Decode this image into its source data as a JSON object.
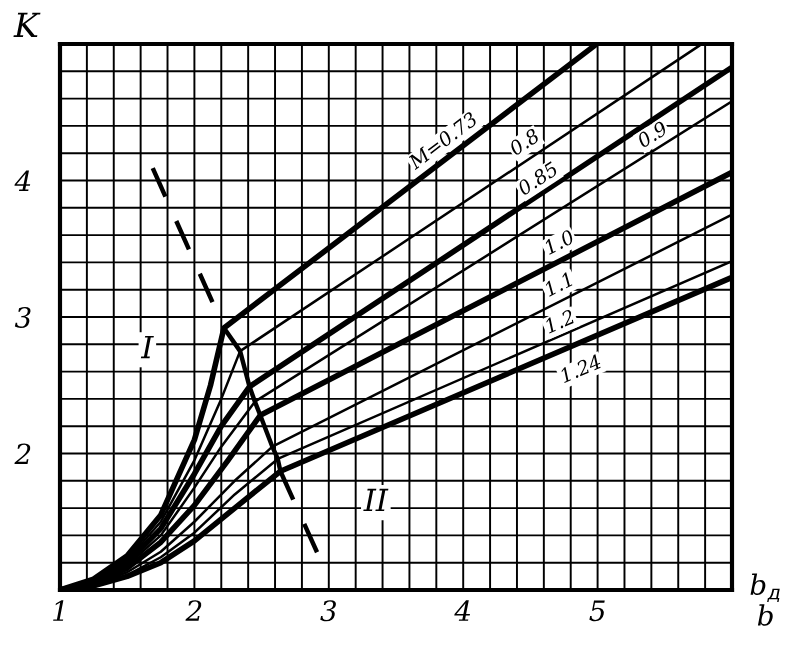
{
  "chart_data": {
    "type": "line",
    "ylabel": "K",
    "xlabel": "b$_{д}$\nb",
    "xlim": [
      1,
      6
    ],
    "ylim": [
      1,
      5
    ],
    "xticks": [
      1,
      2,
      3,
      4,
      5
    ],
    "yticks": [
      2,
      3,
      4
    ],
    "grid": true,
    "legend": false,
    "marker": "none",
    "line_style": "solid",
    "series": [
      {
        "name": "M=0.73",
        "color": "#000000",
        "x": [
          1,
          1.25,
          1.5,
          1.75,
          2.0,
          2.12,
          2.22,
          4.98
        ],
        "values": [
          1,
          1.08,
          1.25,
          1.55,
          2.1,
          2.5,
          2.92,
          4.99
        ]
      },
      {
        "name": "0.8",
        "color": "#000000",
        "x": [
          1,
          1.25,
          1.5,
          1.75,
          2.0,
          2.2,
          2.34,
          5.76
        ],
        "values": [
          1,
          1.07,
          1.22,
          1.5,
          1.95,
          2.4,
          2.75,
          4.99
        ]
      },
      {
        "name": "0.85",
        "color": "#000000",
        "x": [
          1,
          1.25,
          1.5,
          1.75,
          2.0,
          2.2,
          2.41,
          6
        ],
        "values": [
          1,
          1.06,
          1.2,
          1.45,
          1.85,
          2.2,
          2.49,
          4.83
        ]
      },
      {
        "name": "0.9",
        "color": "#000000",
        "x": [
          1,
          1.25,
          1.5,
          1.75,
          2.0,
          2.2,
          2.45,
          6
        ],
        "values": [
          1,
          1.05,
          1.18,
          1.4,
          1.75,
          2.05,
          2.38,
          4.58
        ]
      },
      {
        "name": "1.0",
        "color": "#000000",
        "x": [
          1,
          1.25,
          1.5,
          1.75,
          2.0,
          2.25,
          2.49,
          6
        ],
        "values": [
          1,
          1.05,
          1.16,
          1.35,
          1.62,
          1.95,
          2.28,
          4.06
        ]
      },
      {
        "name": "1.1",
        "color": "#000000",
        "x": [
          1,
          1.25,
          1.5,
          1.75,
          2.0,
          2.3,
          2.58,
          6
        ],
        "values": [
          1,
          1.04,
          1.13,
          1.28,
          1.5,
          1.8,
          2.05,
          3.75
        ]
      },
      {
        "name": "1.2",
        "color": "#000000",
        "x": [
          1,
          1.25,
          1.5,
          1.75,
          2.0,
          2.3,
          2.62,
          6
        ],
        "values": [
          1,
          1.03,
          1.11,
          1.24,
          1.42,
          1.7,
          1.96,
          3.41
        ]
      },
      {
        "name": "1.24",
        "color": "#000000",
        "x": [
          1,
          1.25,
          1.5,
          1.75,
          2.0,
          2.3,
          2.64,
          6
        ],
        "values": [
          1,
          1.03,
          1.1,
          1.2,
          1.36,
          1.6,
          1.87,
          3.29
        ]
      },
      {
        "color": "#000000",
        "x": [
          2.22,
          2.34,
          2.41,
          2.45,
          2.49,
          2.58,
          2.62,
          2.64
        ],
        "values": [
          2.92,
          2.75,
          2.49,
          2.38,
          2.28,
          2.05,
          1.96,
          1.87
        ]
      },
      {
        "color": "#000000",
        "line_style": "dashed",
        "x": [
          1.69,
          2.22
        ],
        "values": [
          4.09,
          2.92
        ]
      },
      {
        "color": "#000000",
        "line_style": "dashed",
        "x": [
          2.64,
          2.98
        ],
        "values": [
          1.87,
          1.13
        ]
      }
    ],
    "annotations": [
      "I",
      "II"
    ]
  }
}
